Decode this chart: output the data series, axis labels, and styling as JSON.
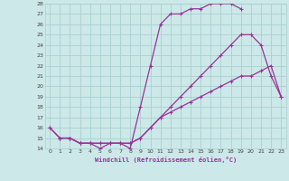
{
  "xlabel": "Windchill (Refroidissement éolien,°C)",
  "bg_color": "#cce8e8",
  "grid_color": "#aacfcf",
  "line_color": "#993399",
  "xlim": [
    -0.5,
    23.5
  ],
  "ylim": [
    14,
    28
  ],
  "xticks": [
    0,
    1,
    2,
    3,
    4,
    5,
    6,
    7,
    8,
    9,
    10,
    11,
    12,
    13,
    14,
    15,
    16,
    17,
    18,
    19,
    20,
    21,
    22,
    23
  ],
  "yticks": [
    14,
    15,
    16,
    17,
    18,
    19,
    20,
    21,
    22,
    23,
    24,
    25,
    26,
    27,
    28
  ],
  "line1_x": [
    0,
    1,
    2,
    3,
    4,
    5,
    6,
    7,
    8,
    9,
    10,
    11,
    12,
    13,
    14,
    15,
    16,
    17,
    18,
    19
  ],
  "line1_y": [
    16,
    15,
    15,
    14.5,
    14.5,
    14,
    14.5,
    14.5,
    14,
    18,
    22,
    26,
    27,
    27,
    27.5,
    27.5,
    28,
    28,
    28,
    27.5
  ],
  "line2_x": [
    1,
    2,
    3,
    4,
    5,
    6,
    7,
    8,
    9,
    10,
    11,
    12,
    13,
    14,
    15,
    16,
    17,
    18,
    19,
    20,
    21,
    22,
    23
  ],
  "line2_y": [
    15,
    15,
    14.5,
    14.5,
    14.5,
    14.5,
    14.5,
    14.5,
    15,
    16,
    17,
    18,
    19,
    20,
    21,
    22,
    23,
    24,
    25,
    25,
    24,
    21,
    19
  ],
  "line3_x": [
    0,
    1,
    2,
    3,
    4,
    5,
    6,
    7,
    8,
    9,
    10,
    11,
    12,
    13,
    14,
    15,
    16,
    17,
    18,
    19,
    20,
    21,
    22,
    23
  ],
  "line3_y": [
    16,
    15,
    15,
    14.5,
    14.5,
    14.5,
    14.5,
    14.5,
    14.5,
    15,
    16,
    17,
    17.5,
    18,
    18.5,
    19,
    19.5,
    20,
    20.5,
    21,
    21,
    21.5,
    22,
    19
  ]
}
